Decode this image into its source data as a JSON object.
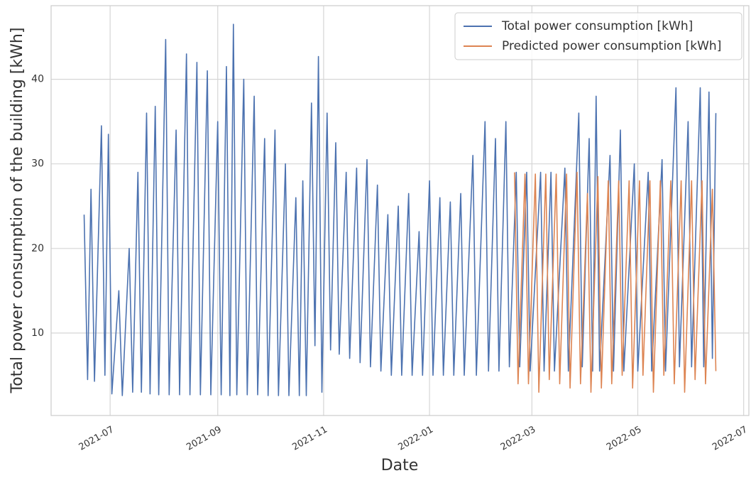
{
  "chart_data": {
    "type": "line",
    "x_label": "Date",
    "y_label": "Total power consumption of the building [kWh]",
    "xlim": [
      "2021-05-28",
      "2022-07-04"
    ],
    "ylim": [
      0.25,
      48.7
    ],
    "xticks": [
      {
        "value": "2021-07-01",
        "label": "2021-07"
      },
      {
        "value": "2021-09-01",
        "label": "2021-09"
      },
      {
        "value": "2021-11-01",
        "label": "2021-11"
      },
      {
        "value": "2022-01-01",
        "label": "2022-01"
      },
      {
        "value": "2022-03-01",
        "label": "2022-03"
      },
      {
        "value": "2022-05-01",
        "label": "2022-05"
      },
      {
        "value": "2022-07-01",
        "label": "2022-07"
      }
    ],
    "yticks": [
      10,
      20,
      30,
      40
    ],
    "grid": true,
    "legend": "upper right",
    "series": [
      {
        "name": "Total power consumption [kWh]",
        "color": "#4c72b0",
        "x": [
          "2021-06-16",
          "2021-06-18",
          "2021-06-20",
          "2021-06-22",
          "2021-06-26",
          "2021-06-28",
          "2021-06-30",
          "2021-07-02",
          "2021-07-06",
          "2021-07-08",
          "2021-07-12",
          "2021-07-14",
          "2021-07-17",
          "2021-07-19",
          "2021-07-22",
          "2021-07-24",
          "2021-07-27",
          "2021-07-29",
          "2021-08-02",
          "2021-08-04",
          "2021-08-08",
          "2021-08-10",
          "2021-08-14",
          "2021-08-16",
          "2021-08-20",
          "2021-08-22",
          "2021-08-26",
          "2021-08-28",
          "2021-09-01",
          "2021-09-03",
          "2021-09-06",
          "2021-09-08",
          "2021-09-10",
          "2021-09-12",
          "2021-09-16",
          "2021-09-18",
          "2021-09-22",
          "2021-09-24",
          "2021-09-28",
          "2021-09-30",
          "2021-10-04",
          "2021-10-06",
          "2021-10-10",
          "2021-10-12",
          "2021-10-16",
          "2021-10-18",
          "2021-10-20",
          "2021-10-22",
          "2021-10-25",
          "2021-10-27",
          "2021-10-29",
          "2021-10-31",
          "2021-11-03",
          "2021-11-05",
          "2021-11-08",
          "2021-11-10",
          "2021-11-14",
          "2021-11-16",
          "2021-11-20",
          "2021-11-22",
          "2021-11-26",
          "2021-11-28",
          "2021-12-02",
          "2021-12-04",
          "2021-12-08",
          "2021-12-10",
          "2021-12-14",
          "2021-12-16",
          "2021-12-20",
          "2021-12-22",
          "2021-12-26",
          "2021-12-28",
          "2022-01-01",
          "2022-01-03",
          "2022-01-07",
          "2022-01-09",
          "2022-01-13",
          "2022-01-15",
          "2022-01-19",
          "2022-01-21",
          "2022-01-26",
          "2022-01-28",
          "2022-02-02",
          "2022-02-04",
          "2022-02-08",
          "2022-02-10",
          "2022-02-14",
          "2022-02-16",
          "2022-02-20",
          "2022-02-22",
          "2022-02-26",
          "2022-02-28",
          "2022-03-06",
          "2022-03-08",
          "2022-03-12",
          "2022-03-14",
          "2022-03-20",
          "2022-03-22",
          "2022-03-28",
          "2022-03-30",
          "2022-04-03",
          "2022-04-05",
          "2022-04-07",
          "2022-04-09",
          "2022-04-15",
          "2022-04-17",
          "2022-04-21",
          "2022-04-23",
          "2022-04-29",
          "2022-05-01",
          "2022-05-07",
          "2022-05-09",
          "2022-05-15",
          "2022-05-17",
          "2022-05-23",
          "2022-05-25",
          "2022-05-30",
          "2022-06-01",
          "2022-06-06",
          "2022-06-08",
          "2022-06-11",
          "2022-06-13",
          "2022-06-15"
        ],
        "values": [
          24,
          4.5,
          27,
          4.3,
          34.5,
          5,
          33.5,
          2.8,
          15,
          2.6,
          20,
          3,
          29,
          3,
          36,
          2.8,
          36.8,
          2.7,
          44.7,
          2.7,
          34,
          2.7,
          43,
          2.7,
          42,
          2.7,
          41,
          2.7,
          35,
          2.7,
          41.5,
          2.6,
          46.5,
          2.7,
          40,
          2.7,
          38,
          2.7,
          33,
          2.6,
          34,
          2.6,
          30,
          2.6,
          26,
          2.6,
          28,
          2.6,
          37.2,
          8.5,
          42.7,
          3,
          36,
          8,
          32.5,
          7.5,
          29,
          7,
          29.5,
          6.5,
          30.5,
          6,
          27.5,
          5.5,
          24,
          5,
          25,
          5,
          26.5,
          5,
          22,
          5,
          28,
          5,
          26,
          5,
          25.5,
          5,
          26.5,
          5,
          31,
          5,
          35,
          5.5,
          33,
          5.5,
          35,
          6,
          29,
          6,
          29,
          5.5,
          29,
          5.5,
          29,
          5.5,
          29.5,
          5.5,
          36,
          6,
          33,
          5.5,
          38,
          5.5,
          31,
          5.5,
          34,
          5.5,
          30,
          5.5,
          29,
          5.5,
          30.5,
          5.5,
          39,
          6,
          35,
          6,
          39,
          6,
          38.5,
          7,
          36
        ]
      },
      {
        "name": "Predicted power consumption [kWh]",
        "color": "#dd8452",
        "x": [
          "2022-02-19",
          "2022-02-21",
          "2022-02-25",
          "2022-02-27",
          "2022-03-03",
          "2022-03-05",
          "2022-03-09",
          "2022-03-11",
          "2022-03-15",
          "2022-03-17",
          "2022-03-21",
          "2022-03-23",
          "2022-03-27",
          "2022-03-29",
          "2022-04-02",
          "2022-04-04",
          "2022-04-08",
          "2022-04-10",
          "2022-04-14",
          "2022-04-16",
          "2022-04-20",
          "2022-04-22",
          "2022-04-26",
          "2022-04-28",
          "2022-05-02",
          "2022-05-04",
          "2022-05-08",
          "2022-05-10",
          "2022-05-14",
          "2022-05-16",
          "2022-05-20",
          "2022-05-22",
          "2022-05-26",
          "2022-05-28",
          "2022-06-01",
          "2022-06-03",
          "2022-06-07",
          "2022-06-09",
          "2022-06-13",
          "2022-06-15"
        ],
        "values": [
          29,
          4,
          28.8,
          4,
          28.8,
          3,
          28.8,
          4.5,
          28.8,
          4,
          28.8,
          3.5,
          29,
          4,
          26.5,
          3,
          28.5,
          3.5,
          28,
          4,
          28,
          5,
          28,
          3.5,
          28,
          5,
          28,
          3,
          28,
          5,
          28,
          4,
          28,
          3,
          28,
          4.5,
          28,
          4,
          27,
          5.5
        ]
      }
    ]
  }
}
